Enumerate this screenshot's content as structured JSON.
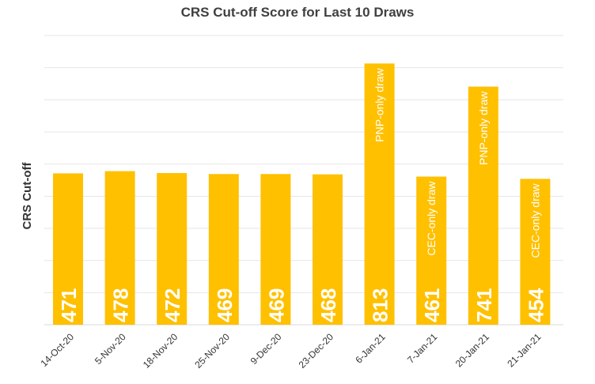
{
  "chart_data": {
    "type": "bar",
    "title": "CRS Cut-off Score for Last 10 Draws",
    "xlabel": "",
    "ylabel": "CRS Cut-off",
    "categories": [
      "14-Oct-20",
      "5-Nov-20",
      "18-Nov-20",
      "25-Nov-20",
      "9-Dec-20",
      "23-Dec-20",
      "6-Jan-21",
      "7-Jan-21",
      "20-Jan-21",
      "21-Jan-21"
    ],
    "values": [
      471,
      478,
      472,
      469,
      469,
      468,
      813,
      461,
      741,
      454
    ],
    "data_labels": [
      "471",
      "478",
      "472",
      "469",
      "469",
      "468",
      "813",
      "461",
      "741",
      "454"
    ],
    "annotations": [
      "",
      "",
      "",
      "",
      "",
      "",
      "PNP-only draw",
      "CEC-only draw",
      "PNP-only draw",
      "CEC-only draw"
    ],
    "ylim": [
      0,
      900
    ],
    "gridlines": [
      100,
      200,
      300,
      400,
      500,
      600,
      700,
      800,
      900
    ],
    "grid": true,
    "y_tick_labels_visible": false,
    "legend": "none",
    "bar_color": "#FFC000",
    "label_color": "#FFFFFF"
  }
}
